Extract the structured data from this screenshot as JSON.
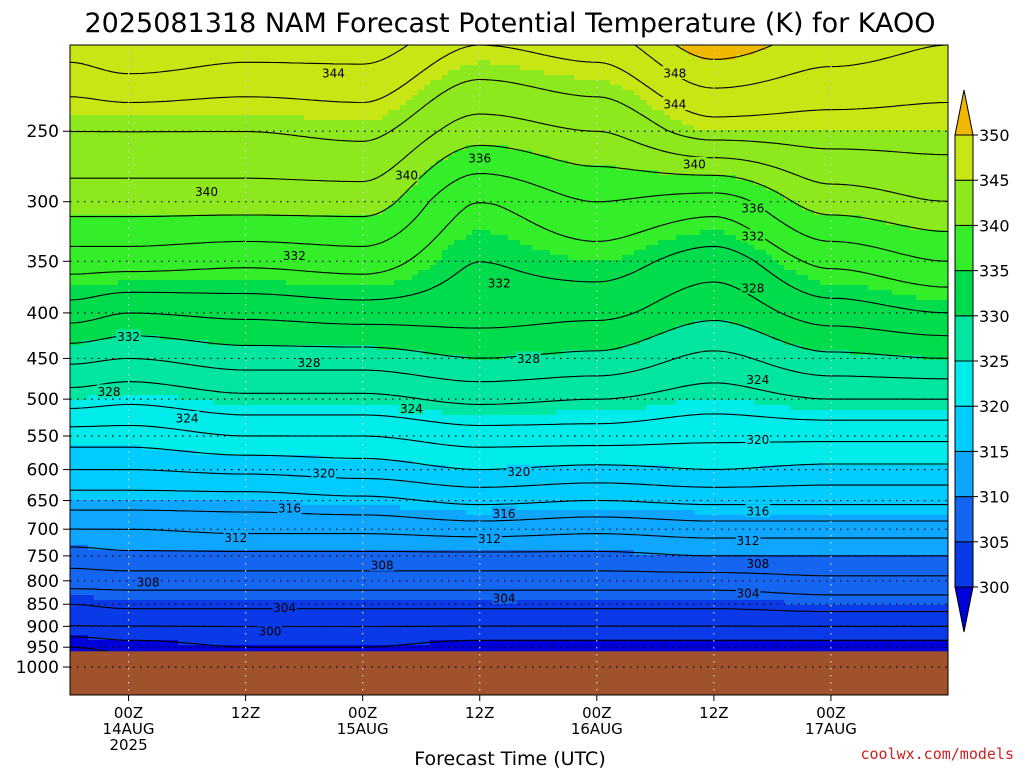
{
  "chart_data": {
    "type": "contour",
    "title": "2025081318 NAM Forecast Potential Temperature (K) for KAOO",
    "xlabel": "Forecast Time (UTC)",
    "credit": "coolwx.com/models",
    "y_axis": {
      "scale": "log-pressure",
      "reversed": true,
      "ticks": [
        250,
        300,
        350,
        400,
        450,
        500,
        550,
        600,
        650,
        700,
        750,
        800,
        850,
        900,
        950,
        1000
      ],
      "range": [
        200,
        1075
      ]
    },
    "x_axis": {
      "range_hours": [
        -6,
        84
      ],
      "ticks": [
        {
          "hour": 0,
          "lines": [
            "00Z",
            "14AUG",
            "2025"
          ]
        },
        {
          "hour": 12,
          "lines": [
            "12Z"
          ]
        },
        {
          "hour": 24,
          "lines": [
            "00Z",
            "15AUG"
          ]
        },
        {
          "hour": 36,
          "lines": [
            "12Z"
          ]
        },
        {
          "hour": 48,
          "lines": [
            "00Z",
            "16AUG"
          ]
        },
        {
          "hour": 60,
          "lines": [
            "12Z"
          ]
        },
        {
          "hour": 72,
          "lines": [
            "00Z",
            "17AUG"
          ]
        }
      ]
    },
    "grid": true,
    "surface_pressure": 960,
    "ground_color": "#a0522d",
    "colorbar": {
      "levels": [
        300,
        305,
        310,
        315,
        320,
        325,
        330,
        335,
        340,
        345,
        350
      ],
      "colors": [
        "#0000d8",
        "#0a3ae8",
        "#1466f0",
        "#0fa6ff",
        "#00ccff",
        "#00ecea",
        "#00e6a0",
        "#00dc4c",
        "#33ee28",
        "#8ee81e",
        "#c8e614",
        "#ffff00",
        "#f0b800"
      ],
      "extend": "both"
    },
    "profiles": [
      {
        "hour": -6,
        "theta": [
          [
            950,
            298
          ],
          [
            900,
            302
          ],
          [
            850,
            304
          ],
          [
            800,
            307
          ],
          [
            750,
            309
          ],
          [
            700,
            312
          ],
          [
            650,
            315
          ],
          [
            600,
            318
          ],
          [
            550,
            321
          ],
          [
            500,
            325
          ],
          [
            450,
            328.5
          ],
          [
            400,
            333
          ],
          [
            350,
            337
          ],
          [
            300,
            341
          ],
          [
            250,
            344
          ],
          [
            200,
            349
          ]
        ]
      },
      {
        "hour": 0,
        "theta": [
          [
            950,
            299
          ],
          [
            900,
            302
          ],
          [
            850,
            304.5
          ],
          [
            800,
            307
          ],
          [
            750,
            309.5
          ],
          [
            700,
            312
          ],
          [
            650,
            315
          ],
          [
            600,
            318
          ],
          [
            550,
            321
          ],
          [
            500,
            324.5
          ],
          [
            450,
            328
          ],
          [
            400,
            332
          ],
          [
            350,
            337
          ],
          [
            300,
            341
          ],
          [
            250,
            344
          ],
          [
            200,
            350
          ]
        ]
      },
      {
        "hour": 12,
        "theta": [
          [
            950,
            300
          ],
          [
            900,
            302
          ],
          [
            850,
            304.5
          ],
          [
            800,
            307
          ],
          [
            750,
            309.5
          ],
          [
            700,
            312.5
          ],
          [
            650,
            315
          ],
          [
            600,
            318.5
          ],
          [
            550,
            322
          ],
          [
            500,
            325.5
          ],
          [
            450,
            329
          ],
          [
            400,
            332.5
          ],
          [
            350,
            336.5
          ],
          [
            300,
            341
          ],
          [
            250,
            344
          ],
          [
            200,
            349
          ]
        ]
      },
      {
        "hour": 24,
        "theta": [
          [
            950,
            300
          ],
          [
            900,
            302
          ],
          [
            850,
            304.5
          ],
          [
            800,
            307
          ],
          [
            750,
            309.5
          ],
          [
            700,
            312.5
          ],
          [
            650,
            315.5
          ],
          [
            600,
            319
          ],
          [
            550,
            322
          ],
          [
            500,
            325.5
          ],
          [
            450,
            329
          ],
          [
            400,
            333
          ],
          [
            350,
            337
          ],
          [
            300,
            341
          ],
          [
            250,
            344.5
          ],
          [
            200,
            349
          ]
        ]
      },
      {
        "hour": 36,
        "theta": [
          [
            950,
            299
          ],
          [
            900,
            302
          ],
          [
            850,
            304.5
          ],
          [
            800,
            307
          ],
          [
            750,
            309.5
          ],
          [
            700,
            313
          ],
          [
            650,
            316.5
          ],
          [
            600,
            320
          ],
          [
            550,
            323
          ],
          [
            500,
            326.5
          ],
          [
            450,
            330
          ],
          [
            400,
            333
          ],
          [
            350,
            334
          ],
          [
            300,
            336
          ],
          [
            250,
            341
          ],
          [
            200,
            346
          ]
        ]
      },
      {
        "hour": 48,
        "theta": [
          [
            950,
            299
          ],
          [
            900,
            302
          ],
          [
            850,
            304.5
          ],
          [
            800,
            307
          ],
          [
            750,
            309.5
          ],
          [
            700,
            312.5
          ],
          [
            650,
            316
          ],
          [
            600,
            319.5
          ],
          [
            550,
            323
          ],
          [
            500,
            326
          ],
          [
            450,
            329.5
          ],
          [
            400,
            332.5
          ],
          [
            350,
            335
          ],
          [
            300,
            338
          ],
          [
            250,
            342
          ],
          [
            200,
            347
          ]
        ]
      },
      {
        "hour": 60,
        "theta": [
          [
            950,
            299
          ],
          [
            900,
            302
          ],
          [
            850,
            304.5
          ],
          [
            800,
            307
          ],
          [
            750,
            310
          ],
          [
            700,
            313
          ],
          [
            650,
            316.5
          ],
          [
            600,
            320
          ],
          [
            550,
            322.5
          ],
          [
            500,
            325
          ],
          [
            450,
            327.5
          ],
          [
            400,
            330.5
          ],
          [
            350,
            333
          ],
          [
            300,
            337
          ],
          [
            250,
            345
          ],
          [
            200,
            351
          ]
        ]
      },
      {
        "hour": 72,
        "theta": [
          [
            950,
            299
          ],
          [
            900,
            302
          ],
          [
            850,
            305
          ],
          [
            800,
            307.5
          ],
          [
            750,
            310
          ],
          [
            700,
            313
          ],
          [
            650,
            316.5
          ],
          [
            600,
            319.5
          ],
          [
            550,
            322.5
          ],
          [
            500,
            326
          ],
          [
            450,
            329.5
          ],
          [
            400,
            333
          ],
          [
            350,
            336.5
          ],
          [
            300,
            341
          ],
          [
            250,
            345
          ],
          [
            200,
            349
          ]
        ]
      },
      {
        "hour": 84,
        "theta": [
          [
            950,
            299
          ],
          [
            900,
            302
          ],
          [
            850,
            305
          ],
          [
            800,
            307.5
          ],
          [
            750,
            310
          ],
          [
            700,
            313
          ],
          [
            650,
            316.5
          ],
          [
            600,
            319.5
          ],
          [
            550,
            322.5
          ],
          [
            500,
            326
          ],
          [
            450,
            330
          ],
          [
            400,
            334
          ],
          [
            350,
            338
          ],
          [
            300,
            342
          ],
          [
            250,
            345
          ],
          [
            200,
            348
          ]
        ]
      }
    ],
    "contour_labels": [
      {
        "text": "344",
        "hour": 21,
        "pressure": 215
      },
      {
        "text": "348",
        "hour": 56,
        "pressure": 215
      },
      {
        "text": "344",
        "hour": 56,
        "pressure": 233
      },
      {
        "text": "340",
        "hour": 28.5,
        "pressure": 280
      },
      {
        "text": "336",
        "hour": 36,
        "pressure": 268
      },
      {
        "text": "340",
        "hour": 58,
        "pressure": 272
      },
      {
        "text": "340",
        "hour": 8,
        "pressure": 292
      },
      {
        "text": "336",
        "hour": 64,
        "pressure": 305
      },
      {
        "text": "332",
        "hour": 17,
        "pressure": 345
      },
      {
        "text": "332",
        "hour": 64,
        "pressure": 328
      },
      {
        "text": "332",
        "hour": 38,
        "pressure": 370
      },
      {
        "text": "328",
        "hour": 64,
        "pressure": 375
      },
      {
        "text": "332",
        "hour": 0,
        "pressure": 425
      },
      {
        "text": "328",
        "hour": 18.5,
        "pressure": 455
      },
      {
        "text": "328",
        "hour": 41,
        "pressure": 450
      },
      {
        "text": "328",
        "hour": -2,
        "pressure": 490
      },
      {
        "text": "324",
        "hour": 64.5,
        "pressure": 475
      },
      {
        "text": "324",
        "hour": 6,
        "pressure": 525
      },
      {
        "text": "324",
        "hour": 29,
        "pressure": 512
      },
      {
        "text": "320",
        "hour": 64.5,
        "pressure": 555
      },
      {
        "text": "320",
        "hour": 20,
        "pressure": 605
      },
      {
        "text": "320",
        "hour": 40,
        "pressure": 603
      },
      {
        "text": "316",
        "hour": 16.5,
        "pressure": 663
      },
      {
        "text": "316",
        "hour": 38.5,
        "pressure": 672
      },
      {
        "text": "316",
        "hour": 64.5,
        "pressure": 668
      },
      {
        "text": "312",
        "hour": 11,
        "pressure": 715
      },
      {
        "text": "312",
        "hour": 37,
        "pressure": 717
      },
      {
        "text": "312",
        "hour": 63.5,
        "pressure": 721
      },
      {
        "text": "308",
        "hour": 26,
        "pressure": 768
      },
      {
        "text": "308",
        "hour": 2,
        "pressure": 802
      },
      {
        "text": "308",
        "hour": 64.5,
        "pressure": 765
      },
      {
        "text": "304",
        "hour": 16,
        "pressure": 857
      },
      {
        "text": "304",
        "hour": 38.5,
        "pressure": 836
      },
      {
        "text": "304",
        "hour": 63.5,
        "pressure": 826
      },
      {
        "text": "300",
        "hour": 14.5,
        "pressure": 911
      }
    ]
  }
}
